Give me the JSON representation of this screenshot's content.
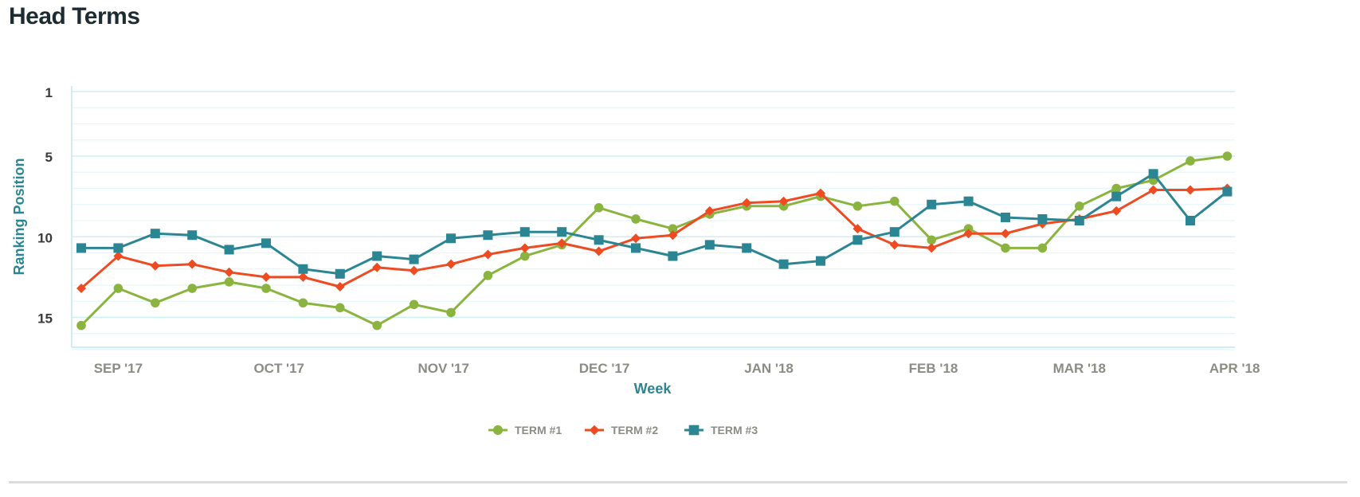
{
  "page_title": "Head Terms",
  "chart_data": {
    "type": "line",
    "title": "Head Terms",
    "xlabel": "Week",
    "ylabel": "Ranking Position",
    "y_reversed": true,
    "ylim": [
      1,
      17
    ],
    "yticks": [
      1,
      5,
      10,
      15
    ],
    "y_minor_step": 1,
    "x_count": 32,
    "x_month_labels": [
      {
        "label": "SEP '17",
        "index": 1
      },
      {
        "label": "OCT '17",
        "index": 5.35
      },
      {
        "label": "NOV '17",
        "index": 9.8
      },
      {
        "label": "DEC '17",
        "index": 14.15
      },
      {
        "label": "JAN '18",
        "index": 18.6
      },
      {
        "label": "FEB '18",
        "index": 23.05
      },
      {
        "label": "MAR '18",
        "index": 27
      },
      {
        "label": "APR '18",
        "index": 31.2
      }
    ],
    "series": [
      {
        "name": "TERM #1",
        "color": "#8ab43f",
        "marker": "circle",
        "values": [
          15.5,
          13.2,
          14.1,
          13.2,
          12.8,
          13.2,
          14.1,
          14.4,
          15.5,
          14.2,
          14.7,
          12.4,
          11.2,
          10.5,
          8.2,
          8.9,
          9.5,
          8.6,
          8.1,
          8.1,
          7.5,
          8.1,
          7.8,
          10.2,
          9.5,
          10.7,
          10.7,
          8.1,
          7.0,
          6.5,
          5.3,
          5.0
        ]
      },
      {
        "name": "TERM #2",
        "color": "#ee4b22",
        "marker": "diamond",
        "values": [
          13.2,
          11.2,
          11.8,
          11.7,
          12.2,
          12.5,
          12.5,
          13.1,
          11.9,
          12.1,
          11.7,
          11.1,
          10.7,
          10.4,
          10.9,
          10.1,
          9.9,
          8.4,
          7.9,
          7.8,
          7.3,
          9.5,
          10.5,
          10.7,
          9.8,
          9.8,
          9.2,
          8.9,
          8.4,
          7.1,
          7.1,
          7.0
        ]
      },
      {
        "name": "TERM #3",
        "color": "#2b8592",
        "marker": "square",
        "values": [
          10.7,
          10.7,
          9.8,
          9.9,
          10.8,
          10.4,
          12.0,
          12.3,
          11.2,
          11.4,
          10.1,
          9.9,
          9.7,
          9.7,
          10.2,
          10.7,
          11.2,
          10.5,
          10.7,
          11.7,
          11.5,
          10.2,
          9.7,
          8.0,
          7.8,
          8.8,
          8.9,
          9.0,
          7.5,
          6.1,
          9.0,
          7.2
        ]
      }
    ],
    "legend": {
      "position": "bottom-center"
    },
    "grid": true
  }
}
